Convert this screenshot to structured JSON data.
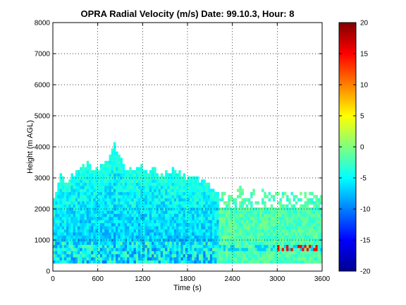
{
  "chart_data": {
    "type": "heatmap",
    "title": "OPRA Radial Velocity (m/s)  Date: 99.10.3, Hour: 8",
    "xlabel": "Time (s)",
    "ylabel": "Height (m AGL)",
    "xlim": [
      0,
      3600
    ],
    "ylim": [
      0,
      8000
    ],
    "x_ticks": [
      0,
      600,
      1200,
      1800,
      2400,
      3000,
      3600
    ],
    "y_ticks": [
      0,
      1000,
      2000,
      3000,
      4000,
      5000,
      6000,
      7000,
      8000
    ],
    "grid": true,
    "colorbar": {
      "colormap": "jet",
      "clim": [
        -20,
        20
      ],
      "ticks": [
        20,
        15,
        10,
        5,
        0,
        -5,
        -10,
        -15,
        -20
      ]
    },
    "coverage": {
      "min_height": 250,
      "time_step_s": 30,
      "top_profile": [
        [
          0,
          2250
        ],
        [
          90,
          3000
        ],
        [
          180,
          2800
        ],
        [
          270,
          3100
        ],
        [
          360,
          3300
        ],
        [
          450,
          3400
        ],
        [
          540,
          3200
        ],
        [
          630,
          3300
        ],
        [
          720,
          3600
        ],
        [
          810,
          4000
        ],
        [
          870,
          3700
        ],
        [
          960,
          3300
        ],
        [
          1050,
          3200
        ],
        [
          1140,
          3300
        ],
        [
          1230,
          3200
        ],
        [
          1320,
          3300
        ],
        [
          1410,
          3100
        ],
        [
          1500,
          3100
        ],
        [
          1590,
          3200
        ],
        [
          1680,
          3100
        ],
        [
          1770,
          3000
        ],
        [
          1860,
          2950
        ],
        [
          1950,
          2900
        ],
        [
          2040,
          2800
        ],
        [
          2130,
          2600
        ],
        [
          2220,
          2500
        ],
        [
          2310,
          2600
        ],
        [
          2400,
          2500
        ],
        [
          2490,
          2600
        ],
        [
          2580,
          2500
        ],
        [
          2700,
          2600
        ],
        [
          2850,
          2400
        ],
        [
          3000,
          2500
        ],
        [
          3150,
          2500
        ],
        [
          3300,
          2400
        ],
        [
          3450,
          2500
        ],
        [
          3600,
          2400
        ]
      ]
    },
    "dominant_values": {
      "core_0_2200s": -8,
      "lower_layer": -3,
      "late_period": 0,
      "strip_3000_3600s_near_700m": 15
    }
  }
}
